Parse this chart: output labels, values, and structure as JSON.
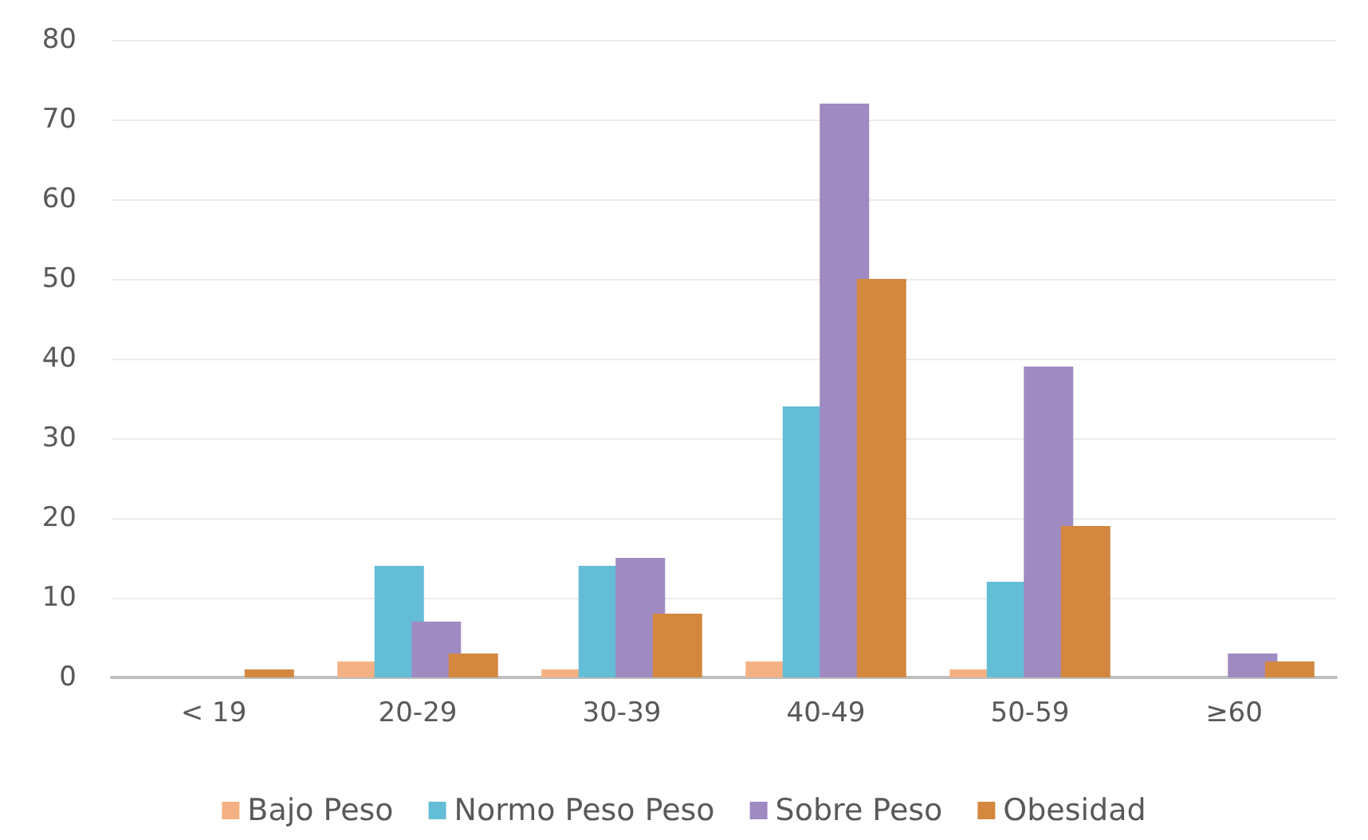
{
  "chart_data": {
    "type": "bar",
    "categories": [
      "< 19",
      "20-29",
      "30-39",
      "40-49",
      "50-59",
      "≥60"
    ],
    "series": [
      {
        "name": "Bajo Peso",
        "color": "#f4b183",
        "values": [
          0,
          2,
          1,
          2,
          1,
          0
        ]
      },
      {
        "name": "Normo Peso Peso",
        "color": "#63bdd6",
        "values": [
          0,
          14,
          14,
          34,
          12,
          0
        ]
      },
      {
        "name": "Sobre Peso",
        "color": "#9f8ac1",
        "values": [
          0,
          7,
          15,
          72,
          39,
          3
        ]
      },
      {
        "name": "Obesidad",
        "color": "#d3873f",
        "values": [
          1,
          3,
          8,
          50,
          19,
          2
        ]
      }
    ],
    "ylim": [
      0,
      80
    ],
    "yticks": [
      0,
      10,
      20,
      30,
      40,
      50,
      60,
      70,
      80
    ],
    "grid": "y",
    "legend": "bottom"
  }
}
